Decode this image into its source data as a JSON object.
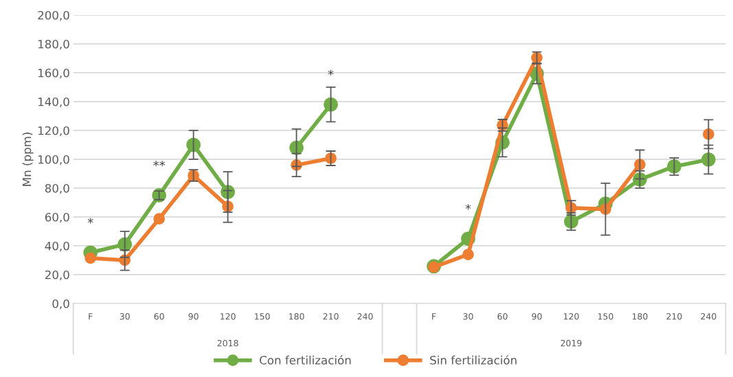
{
  "chart_data": {
    "type": "line",
    "ylabel": "Mn (ppm)",
    "categories": [
      "F",
      "30",
      "60",
      "90",
      "120",
      "150",
      "180",
      "210",
      "240",
      null,
      "F",
      "30",
      "60",
      "90",
      "120",
      "150",
      "180",
      "210",
      "240"
    ],
    "annotations": [
      "2018",
      "2019"
    ],
    "series": [
      {
        "name": "Con fertilización",
        "color": "#70ad47",
        "values": [
          35.3,
          41,
          75,
          110,
          77.3,
          null,
          108,
          138,
          null,
          null,
          25.8,
          44.9,
          111.7,
          159.4,
          56.8,
          69.2,
          86,
          95,
          99.8
        ],
        "errors": [
          null,
          9,
          3,
          10,
          14,
          null,
          13,
          12,
          null,
          null,
          null,
          null,
          10,
          7,
          6,
          null,
          6,
          6,
          10
        ],
        "value_labels": [
          "*",
          null,
          "**",
          null,
          null,
          null,
          null,
          "*",
          null,
          null,
          null,
          "*",
          null,
          null,
          null,
          null,
          null,
          null,
          null
        ]
      },
      {
        "name": "Sin fertilización",
        "color": "#ed7d31",
        "values": [
          31.5,
          30,
          58.7,
          88.8,
          67.3,
          null,
          96,
          100.7,
          null,
          null,
          25.3,
          34,
          123.6,
          170.4,
          66.3,
          65.4,
          96.4,
          null,
          117.4
        ],
        "errors": [
          null,
          7,
          null,
          4,
          11,
          null,
          8,
          5,
          null,
          null,
          null,
          null,
          4,
          4,
          5,
          18,
          10,
          null,
          10
        ]
      }
    ],
    "ylim": [
      0,
      200
    ],
    "yticks": [
      {
        "value": 0,
        "label": "0,0"
      },
      {
        "value": 20,
        "label": "20,0"
      },
      {
        "value": 40,
        "label": "40,0"
      },
      {
        "value": 60,
        "label": "60,0"
      },
      {
        "value": 80,
        "label": "80,0"
      },
      {
        "value": 100,
        "label": "100,0"
      },
      {
        "value": 120,
        "label": "120,0"
      },
      {
        "value": 140,
        "label": "140,0"
      },
      {
        "value": 160,
        "label": "160,0"
      },
      {
        "value": 180,
        "label": "180,0"
      },
      {
        "value": 200,
        "label": "200,0"
      }
    ],
    "grid": "y",
    "legend": "bottom",
    "marker": "circle",
    "line_style": "solid"
  }
}
